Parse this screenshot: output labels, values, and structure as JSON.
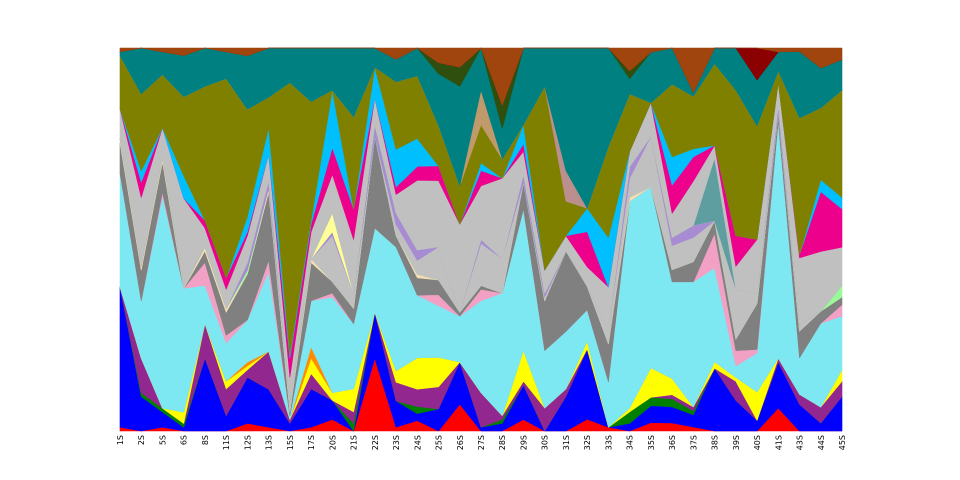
{
  "chart_data": {
    "type": "area",
    "stacked": true,
    "normalized": true,
    "title": "",
    "xlabel": "",
    "ylabel": "",
    "ylim": [
      0,
      1
    ],
    "grid": false,
    "legend": "none",
    "categories": [
      "1S",
      "2S",
      "5S",
      "6S",
      "8S",
      "11S",
      "12S",
      "13S",
      "15S",
      "17S",
      "20S",
      "21S",
      "22S",
      "23S",
      "24S",
      "25S",
      "26S",
      "27S",
      "28S",
      "29S",
      "30S",
      "31S",
      "32S",
      "33S",
      "34S",
      "35S",
      "36S",
      "37S",
      "38S",
      "39S",
      "40S",
      "41S",
      "43S",
      "44S",
      "45S"
    ],
    "series": [
      {
        "color": "#ff0000",
        "values": [
          0.01,
          0.0,
          0.01,
          0.0,
          0.0,
          0.0,
          0.02,
          0.01,
          0.0,
          0.01,
          0.03,
          0.0,
          0.19,
          0.01,
          0.03,
          0.0,
          0.07,
          0.0,
          0.0,
          0.03,
          0.0,
          0.0,
          0.03,
          0.01,
          0.0,
          0.02,
          0.02,
          0.01,
          0.0,
          0.0,
          0.0,
          0.06,
          0.0,
          0.0,
          0.0
        ]
      },
      {
        "color": "#0000ff",
        "values": [
          0.37,
          0.09,
          0.04,
          0.01,
          0.19,
          0.04,
          0.12,
          0.1,
          0.02,
          0.1,
          0.05,
          0.0,
          0.12,
          0.07,
          0.02,
          0.06,
          0.11,
          0.01,
          0.02,
          0.09,
          0.0,
          0.09,
          0.18,
          0.0,
          0.02,
          0.04,
          0.04,
          0.03,
          0.2,
          0.08,
          0.03,
          0.12,
          0.08,
          0.02,
          0.09
        ]
      },
      {
        "color": "#008000",
        "values": [
          0.0,
          0.01,
          0.01,
          0.01,
          0.0,
          0.0,
          0.0,
          0.0,
          0.0,
          0.0,
          0.0,
          0.02,
          0.0,
          0.0,
          0.02,
          0.0,
          0.0,
          0.0,
          0.01,
          0.0,
          0.0,
          0.0,
          0.0,
          0.0,
          0.03,
          0.02,
          0.02,
          0.01,
          0.0,
          0.0,
          0.0,
          0.0,
          0.0,
          0.0,
          0.0
        ]
      },
      {
        "color": "#92278f",
        "values": [
          0.0,
          0.09,
          0.0,
          0.0,
          0.09,
          0.07,
          0.02,
          0.1,
          0.01,
          0.04,
          0.0,
          0.03,
          0.0,
          0.05,
          0.05,
          0.06,
          0.0,
          0.09,
          0.01,
          0.01,
          0.06,
          0.02,
          0.0,
          0.0,
          0.0,
          0.0,
          0.01,
          0.01,
          0.0,
          0.05,
          0.0,
          0.01,
          0.03,
          0.04,
          0.04
        ]
      },
      {
        "color": "#ffff00",
        "values": [
          0.0,
          0.0,
          0.0,
          0.03,
          0.0,
          0.02,
          0.01,
          0.0,
          0.0,
          0.04,
          0.02,
          0.06,
          0.0,
          0.03,
          0.09,
          0.08,
          0.0,
          0.0,
          0.0,
          0.08,
          0.0,
          0.0,
          0.02,
          0.0,
          0.01,
          0.07,
          0.04,
          0.0,
          0.02,
          0.01,
          0.08,
          0.0,
          0.0,
          0.0,
          0.03
        ]
      },
      {
        "color": "#ff8c00",
        "values": [
          0.0,
          0.0,
          0.0,
          0.0,
          0.0,
          0.0,
          0.01,
          0.0,
          0.0,
          0.03,
          0.0,
          0.0,
          0.0,
          0.0,
          0.0,
          0.0,
          0.0,
          0.0,
          0.0,
          0.0,
          0.0,
          0.0,
          0.0,
          0.0,
          0.0,
          0.0,
          0.0,
          0.0,
          0.0,
          0.0,
          0.0,
          0.0,
          0.0,
          0.0,
          0.0
        ]
      },
      {
        "color": "#7de8f2",
        "values": [
          0.3,
          0.15,
          0.56,
          0.33,
          0.1,
          0.1,
          0.11,
          0.21,
          0.01,
          0.12,
          0.25,
          0.17,
          0.22,
          0.33,
          0.18,
          0.14,
          0.12,
          0.24,
          0.32,
          0.37,
          0.15,
          0.15,
          0.08,
          0.12,
          0.54,
          0.43,
          0.24,
          0.31,
          0.3,
          0.03,
          0.11,
          0.62,
          0.11,
          0.21,
          0.14
        ]
      },
      {
        "color": "#f2a1c4",
        "values": [
          0.0,
          0.0,
          0.01,
          0.0,
          0.06,
          0.02,
          0.0,
          0.03,
          0.0,
          0.0,
          0.01,
          0.0,
          0.0,
          0.0,
          0.0,
          0.03,
          0.0,
          0.03,
          0.0,
          0.0,
          0.0,
          0.0,
          0.0,
          0.0,
          0.0,
          0.0,
          0.0,
          0.0,
          0.11,
          0.04,
          0.01,
          0.0,
          0.0,
          0.0,
          0.03
        ]
      },
      {
        "color": "#808080",
        "values": [
          0.08,
          0.08,
          0.08,
          0.0,
          0.03,
          0.06,
          0.12,
          0.18,
          0.01,
          0.1,
          0.03,
          0.04,
          0.24,
          0.03,
          0.05,
          0.04,
          0.01,
          0.01,
          0.0,
          0.07,
          0.13,
          0.21,
          0.06,
          0.1,
          0.0,
          0.0,
          0.03,
          0.05,
          0.04,
          0.03,
          0.13,
          0.02,
          0.08,
          0.03,
          0.02
        ]
      },
      {
        "color": "#f5deb3",
        "values": [
          0.01,
          0.01,
          0.01,
          0.0,
          0.01,
          0.01,
          0.0,
          0.01,
          0.0,
          0.01,
          0.0,
          0.0,
          0.0,
          0.0,
          0.01,
          0.0,
          0.0,
          0.0,
          0.0,
          0.0,
          0.0,
          0.0,
          0.0,
          0.0,
          0.01,
          0.0,
          0.0,
          0.0,
          0.0,
          0.0,
          0.0,
          0.0,
          0.0,
          0.0,
          0.0
        ]
      },
      {
        "color": "#98fb98",
        "values": [
          0.0,
          0.0,
          0.0,
          0.0,
          0.0,
          0.0,
          0.01,
          0.0,
          0.0,
          0.0,
          0.0,
          0.0,
          0.0,
          0.0,
          0.0,
          0.0,
          0.0,
          0.0,
          0.0,
          0.0,
          0.0,
          0.0,
          0.0,
          0.0,
          0.0,
          0.0,
          0.0,
          0.0,
          0.0,
          0.0,
          0.0,
          0.0,
          0.0,
          0.0,
          0.03
        ]
      },
      {
        "color": "#c0c0c0",
        "values": [
          0.0,
          0.0,
          0.0,
          0.02,
          0.0,
          0.0,
          0.0,
          0.0,
          0.03,
          0.0,
          0.12,
          0.04,
          0.0,
          0.03,
          0.04,
          0.09,
          0.0,
          0.11,
          0.09,
          0.0,
          0.01,
          0.0,
          0.0,
          0.04,
          0.05,
          0.12,
          0.06,
          0.06,
          0.0,
          0.13,
          0.03,
          0.0,
          0.02,
          0.0,
          0.0
        ]
      },
      {
        "color": "#a78bd3",
        "values": [
          0.0,
          0.0,
          0.0,
          0.0,
          0.0,
          0.0,
          0.02,
          0.02,
          0.0,
          0.0,
          0.01,
          0.0,
          0.03,
          0.03,
          0.03,
          0.0,
          0.0,
          0.01,
          0.0,
          0.02,
          0.01,
          0.0,
          0.0,
          0.0,
          0.03,
          0.0,
          0.02,
          0.03,
          0.0,
          0.0,
          0.0,
          0.02,
          0.0,
          0.0,
          0.0
        ]
      },
      {
        "color": "#ffff99",
        "values": [
          0.0,
          0.0,
          0.0,
          0.0,
          0.0,
          0.0,
          0.0,
          0.0,
          0.0,
          0.0,
          0.05,
          0.0,
          0.0,
          0.0,
          0.0,
          0.0,
          0.0,
          0.0,
          0.0,
          0.0,
          0.0,
          0.0,
          0.0,
          0.0,
          0.0,
          0.0,
          0.0,
          0.0,
          0.0,
          0.0,
          0.0,
          0.0,
          0.0,
          0.0,
          0.0
        ]
      },
      {
        "color": "#5f9ea0",
        "values": [
          0.0,
          0.0,
          0.0,
          0.0,
          0.0,
          0.0,
          0.0,
          0.0,
          0.0,
          0.0,
          0.0,
          0.0,
          0.0,
          0.0,
          0.0,
          0.0,
          0.0,
          0.0,
          0.0,
          0.0,
          0.0,
          0.0,
          0.0,
          0.0,
          0.0,
          0.0,
          0.0,
          0.0,
          0.2,
          0.0,
          0.0,
          0.0,
          0.0,
          0.0,
          0.0
        ]
      },
      {
        "color": "#c0c0c0",
        "values": [
          0.08,
          0.18,
          0.08,
          0.22,
          0.05,
          0.05,
          0.07,
          0.07,
          0.06,
          0.07,
          0.1,
          0.14,
          0.07,
          0.05,
          0.2,
          0.18,
          0.23,
          0.14,
          0.21,
          0.06,
          0.06,
          0.04,
          0.05,
          0.11,
          0.04,
          0.08,
          0.06,
          0.11,
          0.04,
          0.06,
          0.15,
          0.06,
          0.2,
          0.15,
          0.1
        ]
      },
      {
        "color": "#ec008c",
        "values": [
          0.0,
          0.04,
          0.0,
          0.0,
          0.02,
          0.03,
          0.01,
          0.0,
          0.05,
          0.02,
          0.07,
          0.08,
          0.0,
          0.02,
          0.04,
          0.04,
          0.0,
          0.04,
          0.0,
          0.02,
          0.0,
          0.0,
          0.09,
          0.0,
          0.0,
          0.0,
          0.07,
          0.06,
          0.0,
          0.08,
          0.0,
          0.0,
          0.01,
          0.15,
          0.1
        ]
      },
      {
        "color": "#00bfff",
        "values": [
          0.0,
          0.03,
          0.0,
          0.06,
          0.0,
          0.0,
          0.04,
          0.07,
          0.01,
          0.01,
          0.15,
          0.0,
          0.08,
          0.1,
          0.08,
          0.0,
          0.0,
          0.02,
          0.0,
          0.05,
          0.0,
          0.0,
          0.06,
          0.13,
          0.0,
          0.0,
          0.07,
          0.02,
          0.0,
          0.0,
          0.0,
          0.0,
          0.0,
          0.03,
          0.03
        ]
      },
      {
        "color": "#808000",
        "values": [
          0.14,
          0.2,
          0.14,
          0.21,
          0.35,
          0.52,
          0.28,
          0.08,
          0.71,
          0.31,
          0.0,
          0.24,
          0.0,
          0.18,
          0.18,
          0.11,
          0.1,
          0.1,
          0.05,
          0.0,
          0.48,
          0.09,
          0.0,
          0.24,
          0.15,
          0.0,
          0.18,
          0.13,
          0.26,
          0.38,
          0.32,
          0.03,
          0.41,
          0.18,
          0.28
        ]
      },
      {
        "color": "#bc8f8f",
        "values": [
          0.0,
          0.0,
          0.0,
          0.0,
          0.0,
          0.0,
          0.0,
          0.0,
          0.0,
          0.0,
          0.0,
          0.0,
          0.0,
          0.0,
          0.0,
          0.0,
          0.0,
          0.0,
          0.0,
          0.0,
          0.0,
          0.08,
          0.0,
          0.0,
          0.0,
          0.0,
          0.0,
          0.0,
          0.0,
          0.0,
          0.0,
          0.0,
          0.0,
          0.0,
          0.0
        ]
      },
      {
        "color": "#c19a6b",
        "values": [
          0.0,
          0.0,
          0.0,
          0.0,
          0.0,
          0.0,
          0.0,
          0.0,
          0.0,
          0.0,
          0.0,
          0.0,
          0.0,
          0.0,
          0.0,
          0.0,
          0.0,
          0.09,
          0.0,
          0.0,
          0.0,
          0.0,
          0.0,
          0.0,
          0.0,
          0.0,
          0.0,
          0.0,
          0.0,
          0.0,
          0.0,
          0.0,
          0.0,
          0.0,
          0.0
        ]
      },
      {
        "color": "#008080",
        "values": [
          0.01,
          0.12,
          0.06,
          0.11,
          0.1,
          0.07,
          0.14,
          0.13,
          0.09,
          0.14,
          0.11,
          0.18,
          0.05,
          0.06,
          0.08,
          0.14,
          0.26,
          0.11,
          0.08,
          0.2,
          0.1,
          0.32,
          0.41,
          0.26,
          0.04,
          0.12,
          0.09,
          0.01,
          0.05,
          0.11,
          0.13,
          0.05,
          0.2,
          0.1,
          0.08
        ]
      },
      {
        "color": "#2f4f0f",
        "values": [
          0.0,
          0.0,
          0.0,
          0.0,
          0.0,
          0.0,
          0.0,
          0.0,
          0.0,
          0.0,
          0.0,
          0.0,
          0.0,
          0.0,
          0.0,
          0.03,
          0.05,
          0.0,
          0.06,
          0.0,
          0.0,
          0.0,
          0.0,
          0.0,
          0.02,
          0.0,
          0.0,
          0.0,
          0.0,
          0.0,
          0.0,
          0.0,
          0.0,
          0.0,
          0.0
        ]
      },
      {
        "color": "#8b0000",
        "values": [
          0.0,
          0.0,
          0.0,
          0.0,
          0.0,
          0.0,
          0.0,
          0.0,
          0.0,
          0.0,
          0.0,
          0.0,
          0.0,
          0.0,
          0.0,
          0.0,
          0.0,
          0.0,
          0.0,
          0.0,
          0.0,
          0.0,
          0.0,
          0.0,
          0.0,
          0.0,
          0.0,
          0.0,
          0.0,
          0.0,
          0.09,
          0.0,
          0.0,
          0.0,
          0.0
        ]
      },
      {
        "color": "#a0450e",
        "values": [
          0.01,
          0.0,
          0.01,
          0.02,
          0.0,
          0.01,
          0.02,
          0.0,
          0.0,
          0.0,
          0.0,
          0.0,
          0.0,
          0.03,
          0.0,
          0.04,
          0.05,
          0.0,
          0.15,
          0.0,
          0.0,
          0.0,
          0.0,
          0.0,
          0.06,
          0.01,
          0.0,
          0.11,
          0.0,
          0.0,
          0.0,
          0.01,
          0.01,
          0.05,
          0.03
        ]
      }
    ]
  }
}
